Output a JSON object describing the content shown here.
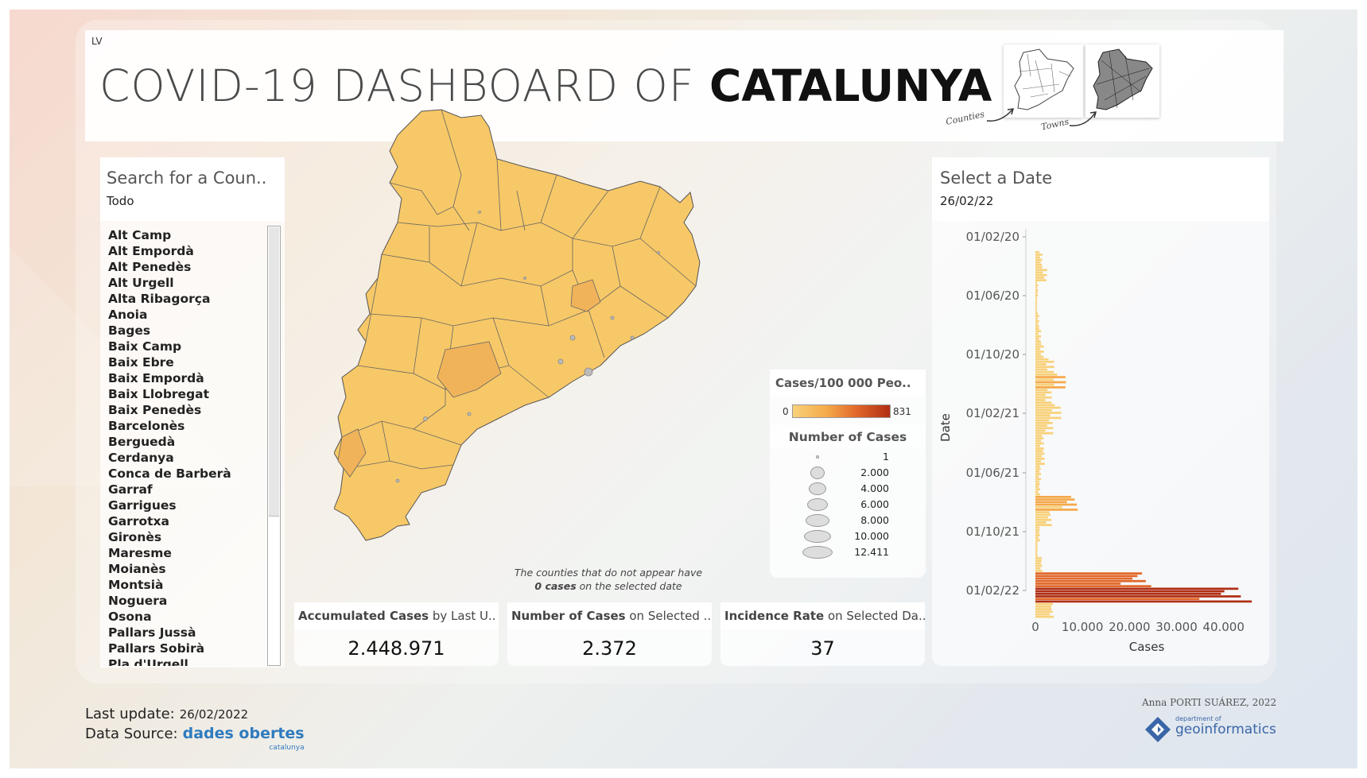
{
  "header": {
    "corner_tag": "LV",
    "title_light": "COVID-19 DASHBOARD OF ",
    "title_bold": "CATALUNYA",
    "thumb_counties_label": "Counties",
    "thumb_towns_label": "Towns"
  },
  "search": {
    "title": "Search for a Coun..",
    "selected": "Todo",
    "counties": [
      "Alt Camp",
      "Alt Empordà",
      "Alt Penedès",
      "Alt Urgell",
      "Alta Ribagorça",
      "Anoia",
      "Bages",
      "Baix Camp",
      "Baix Ebre",
      "Baix Empordà",
      "Baix Llobregat",
      "Baix Penedès",
      "Barcelonès",
      "Berguedà",
      "Cerdanya",
      "Conca de Barberà",
      "Garraf",
      "Garrigues",
      "Garrotxa",
      "Gironès",
      "Maresme",
      "Moianès",
      "Montsià",
      "Noguera",
      "Osona",
      "Pallars Jussà",
      "Pallars Sobirà",
      "Pla d'Urgell"
    ]
  },
  "legend": {
    "color_title": "Cases/100 000 Peo..",
    "color_min": "0",
    "color_max": "831",
    "size_title": "Number of Cases",
    "size_values": [
      "1",
      "2.000",
      "4.000",
      "6.000",
      "8.000",
      "10.000",
      "12.411"
    ]
  },
  "map_note": {
    "line1": "The counties that do not appear have",
    "line2_bold": "0 cases",
    "line2_rest": " on the selected date"
  },
  "kpis": [
    {
      "title_bold": "Accumulated Cases",
      "title_rest": " by Last U..",
      "value": "2.448.971"
    },
    {
      "title_bold": "Number of Cases",
      "title_rest": " on Selected ..",
      "value": "2.372"
    },
    {
      "title_bold": "Incidence Rate",
      "title_rest": " on Selected Da..",
      "value": "37"
    }
  ],
  "date_filter": {
    "title": "Select a Date",
    "selected": "26/02/22"
  },
  "chart_data": {
    "type": "bar",
    "orientation": "horizontal",
    "xlabel": "Cases",
    "ylabel": "Date",
    "x_ticks": [
      "0",
      "10.000",
      "20.000",
      "30.000",
      "40.000"
    ],
    "xlim": [
      0,
      48000
    ],
    "y_ticks": [
      "01/02/20",
      "01/06/20",
      "01/10/20",
      "01/02/21",
      "01/06/21",
      "01/10/21",
      "01/02/22"
    ],
    "series": [
      {
        "values_by_month": [
          {
            "date": "2020-03",
            "value": 1500
          },
          {
            "date": "2020-04",
            "value": 2500
          },
          {
            "date": "2020-05",
            "value": 600
          },
          {
            "date": "2020-06",
            "value": 200
          },
          {
            "date": "2020-07",
            "value": 800
          },
          {
            "date": "2020-08",
            "value": 1200
          },
          {
            "date": "2020-09",
            "value": 1800
          },
          {
            "date": "2020-10",
            "value": 4000
          },
          {
            "date": "2020-11",
            "value": 6500
          },
          {
            "date": "2020-12",
            "value": 3500
          },
          {
            "date": "2021-01",
            "value": 5500
          },
          {
            "date": "2021-02",
            "value": 3800
          },
          {
            "date": "2021-03",
            "value": 1800
          },
          {
            "date": "2021-04",
            "value": 2000
          },
          {
            "date": "2021-05",
            "value": 1200
          },
          {
            "date": "2021-06",
            "value": 1000
          },
          {
            "date": "2021-07",
            "value": 9000
          },
          {
            "date": "2021-08",
            "value": 3500
          },
          {
            "date": "2021-09",
            "value": 1000
          },
          {
            "date": "2021-10",
            "value": 500
          },
          {
            "date": "2021-11",
            "value": 1500
          },
          {
            "date": "2021-12",
            "value": 25000
          },
          {
            "date": "2022-01",
            "value": 47000
          },
          {
            "date": "2022-02",
            "value": 4000
          }
        ]
      }
    ]
  },
  "footer": {
    "last_update_label": "Last update:",
    "last_update_value": "26/02/2022",
    "data_source_label": "Data Source:",
    "data_source_value": "dades obertes",
    "data_source_sub": "catalunya",
    "author": "Anna PORTI SUÁREZ, 2022",
    "logo_small": "department of",
    "logo_big": "geoinformatics"
  },
  "colors": {
    "low": "#f8d17a",
    "mid": "#f5a94a",
    "high": "#e2682a",
    "max": "#b02e14",
    "accent_blue": "#2f7bbf"
  }
}
